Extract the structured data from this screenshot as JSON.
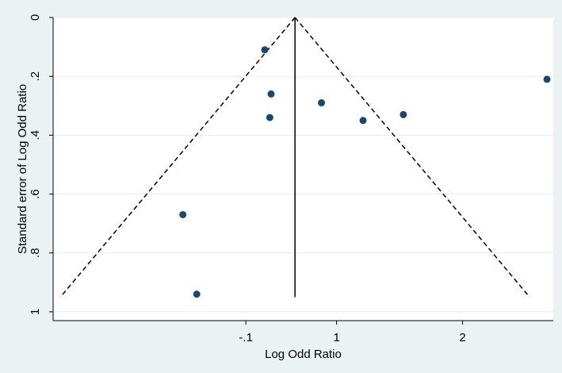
{
  "chart_data": {
    "type": "scatter",
    "subtype": "funnel-plot",
    "title": "",
    "xlabel": "Log Odd Ratio",
    "ylabel": "Standard error of Log Odd Ratio",
    "x_ticks": [
      {
        "value": -0.72,
        "label": "-.1"
      },
      {
        "value": 0.0,
        "label": "1"
      },
      {
        "value": 1.0,
        "label": "2"
      }
    ],
    "y_ticks": [
      {
        "value": 0,
        "label": "0"
      },
      {
        "value": 0.2,
        "label": ".2"
      },
      {
        "value": 0.4,
        "label": ".4"
      },
      {
        "value": 0.6,
        "label": ".6"
      },
      {
        "value": 0.8,
        "label": ".8"
      },
      {
        "value": 1,
        "label": "1"
      }
    ],
    "xlim": [
      -2.25,
      1.72
    ],
    "ylim": [
      0,
      1.03
    ],
    "y_reversed": true,
    "grid": "horizontal",
    "pooled_estimate": -0.33,
    "funnel_bounds": {
      "se_max": 0.95,
      "z": 1.96
    },
    "series": [
      {
        "x": [
          -0.57,
          -0.52,
          -0.53,
          -0.12,
          0.21,
          0.53,
          1.67,
          -1.22,
          -1.11
        ],
        "y": [
          0.11,
          0.26,
          0.34,
          0.29,
          0.35,
          0.33,
          0.21,
          0.67,
          0.94
        ]
      }
    ],
    "colors": {
      "background": "#eaf2f3",
      "plot_area": "#ffffff",
      "grid": "#e4ecef",
      "marker": "#1a476f",
      "lines": "#000000"
    }
  }
}
